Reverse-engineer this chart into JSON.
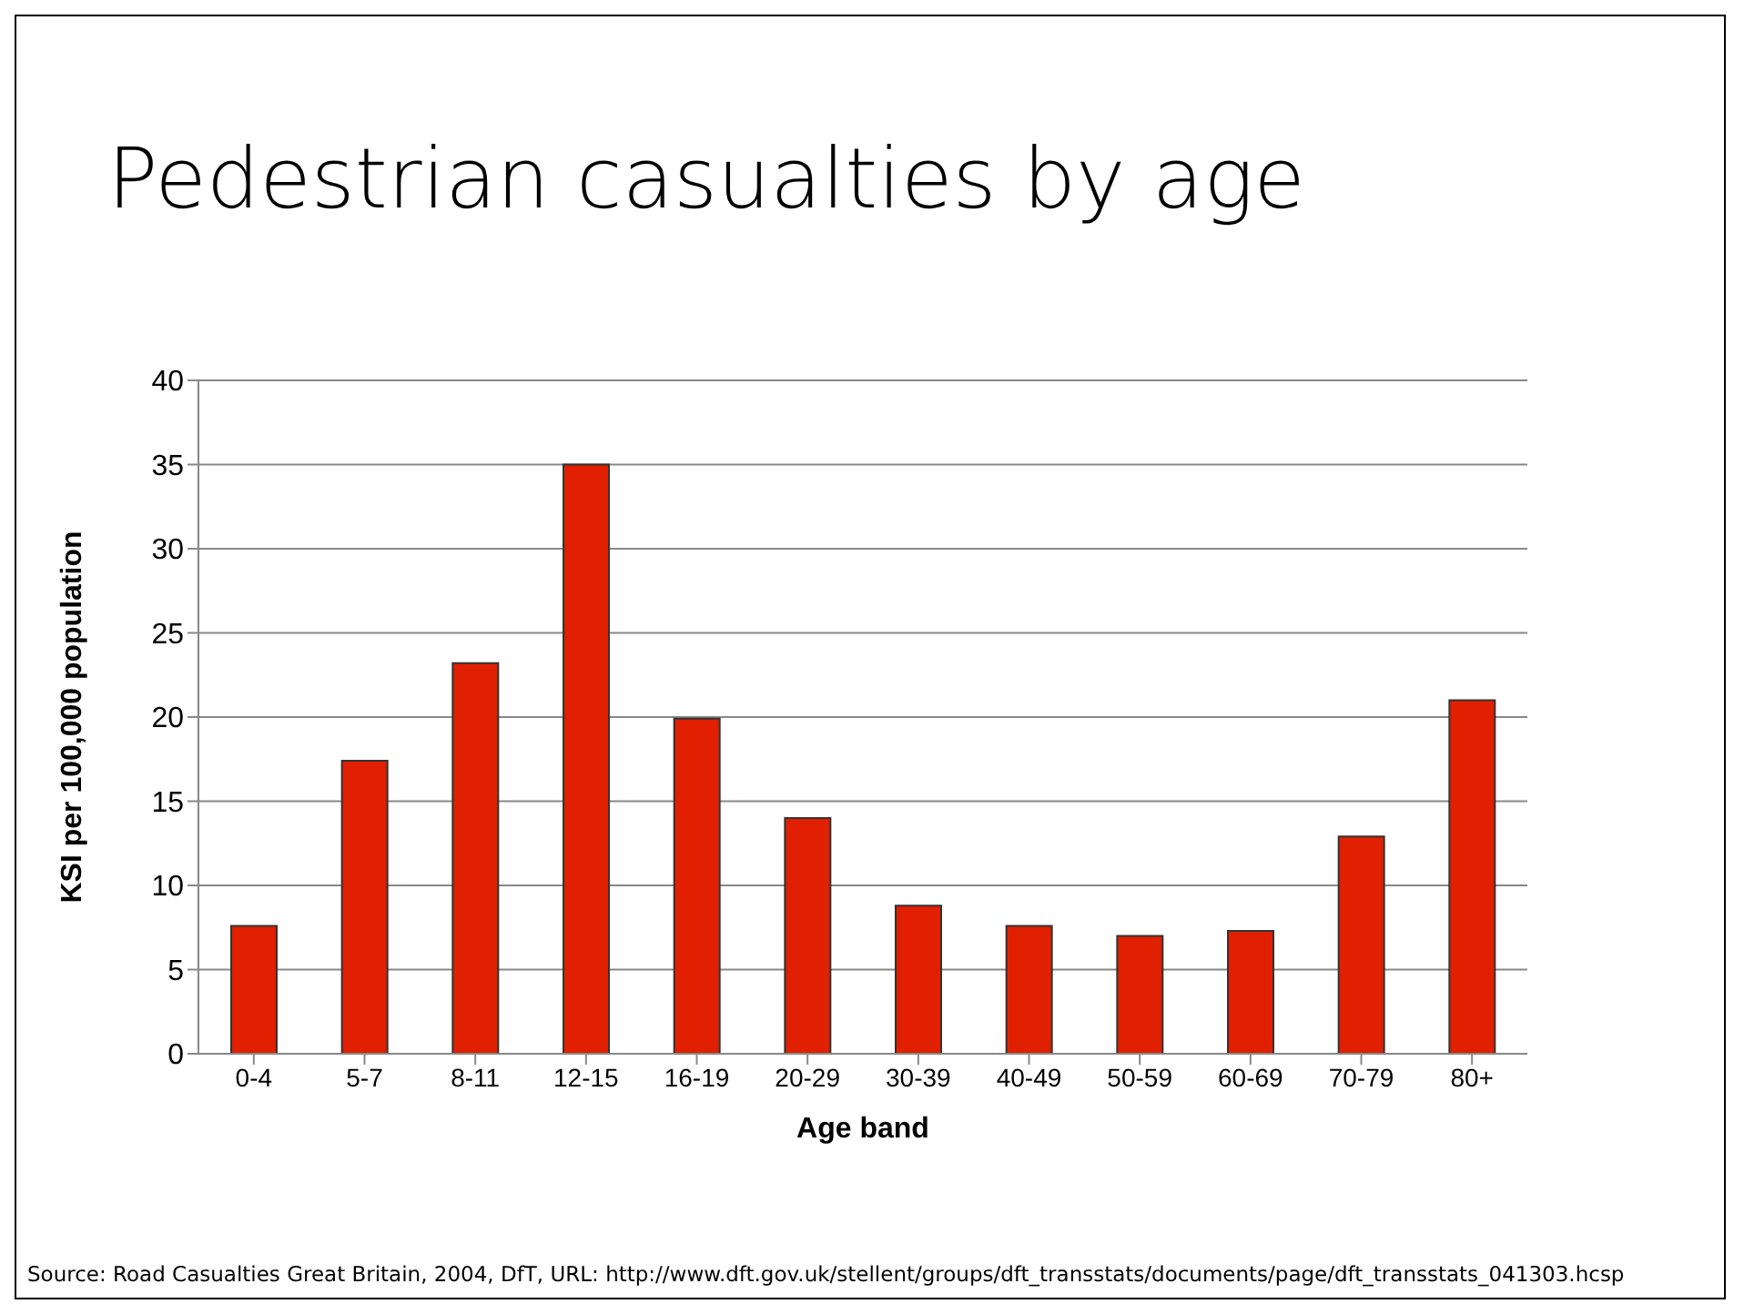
{
  "chart_data": {
    "type": "bar",
    "title": "Pedestrian casualties by age",
    "xlabel": "Age band",
    "ylabel": "KSI  per 100,000 population",
    "categories": [
      "0-4",
      "5-7",
      "8-11",
      "12-15",
      "16-19",
      "20-29",
      "30-39",
      "40-49",
      "50-59",
      "60-69",
      "70-79",
      "80+"
    ],
    "values": [
      7.6,
      17.4,
      23.2,
      35,
      19.9,
      14.0,
      8.8,
      7.6,
      7.0,
      7.3,
      12.9,
      21.0
    ],
    "color": "#e02000",
    "ylim": [
      0,
      40
    ],
    "yticks": [
      0,
      5,
      10,
      15,
      20,
      25,
      30,
      35,
      40
    ],
    "grid": "y",
    "legend": false,
    "annotations": [
      "Source: Road Casualties Great Britain, 2004, DfT, URL: http://www.dft.gov.uk/stellent/groups/dft_transstats/documents/page/dft_transstats_041303.hcsp"
    ]
  }
}
